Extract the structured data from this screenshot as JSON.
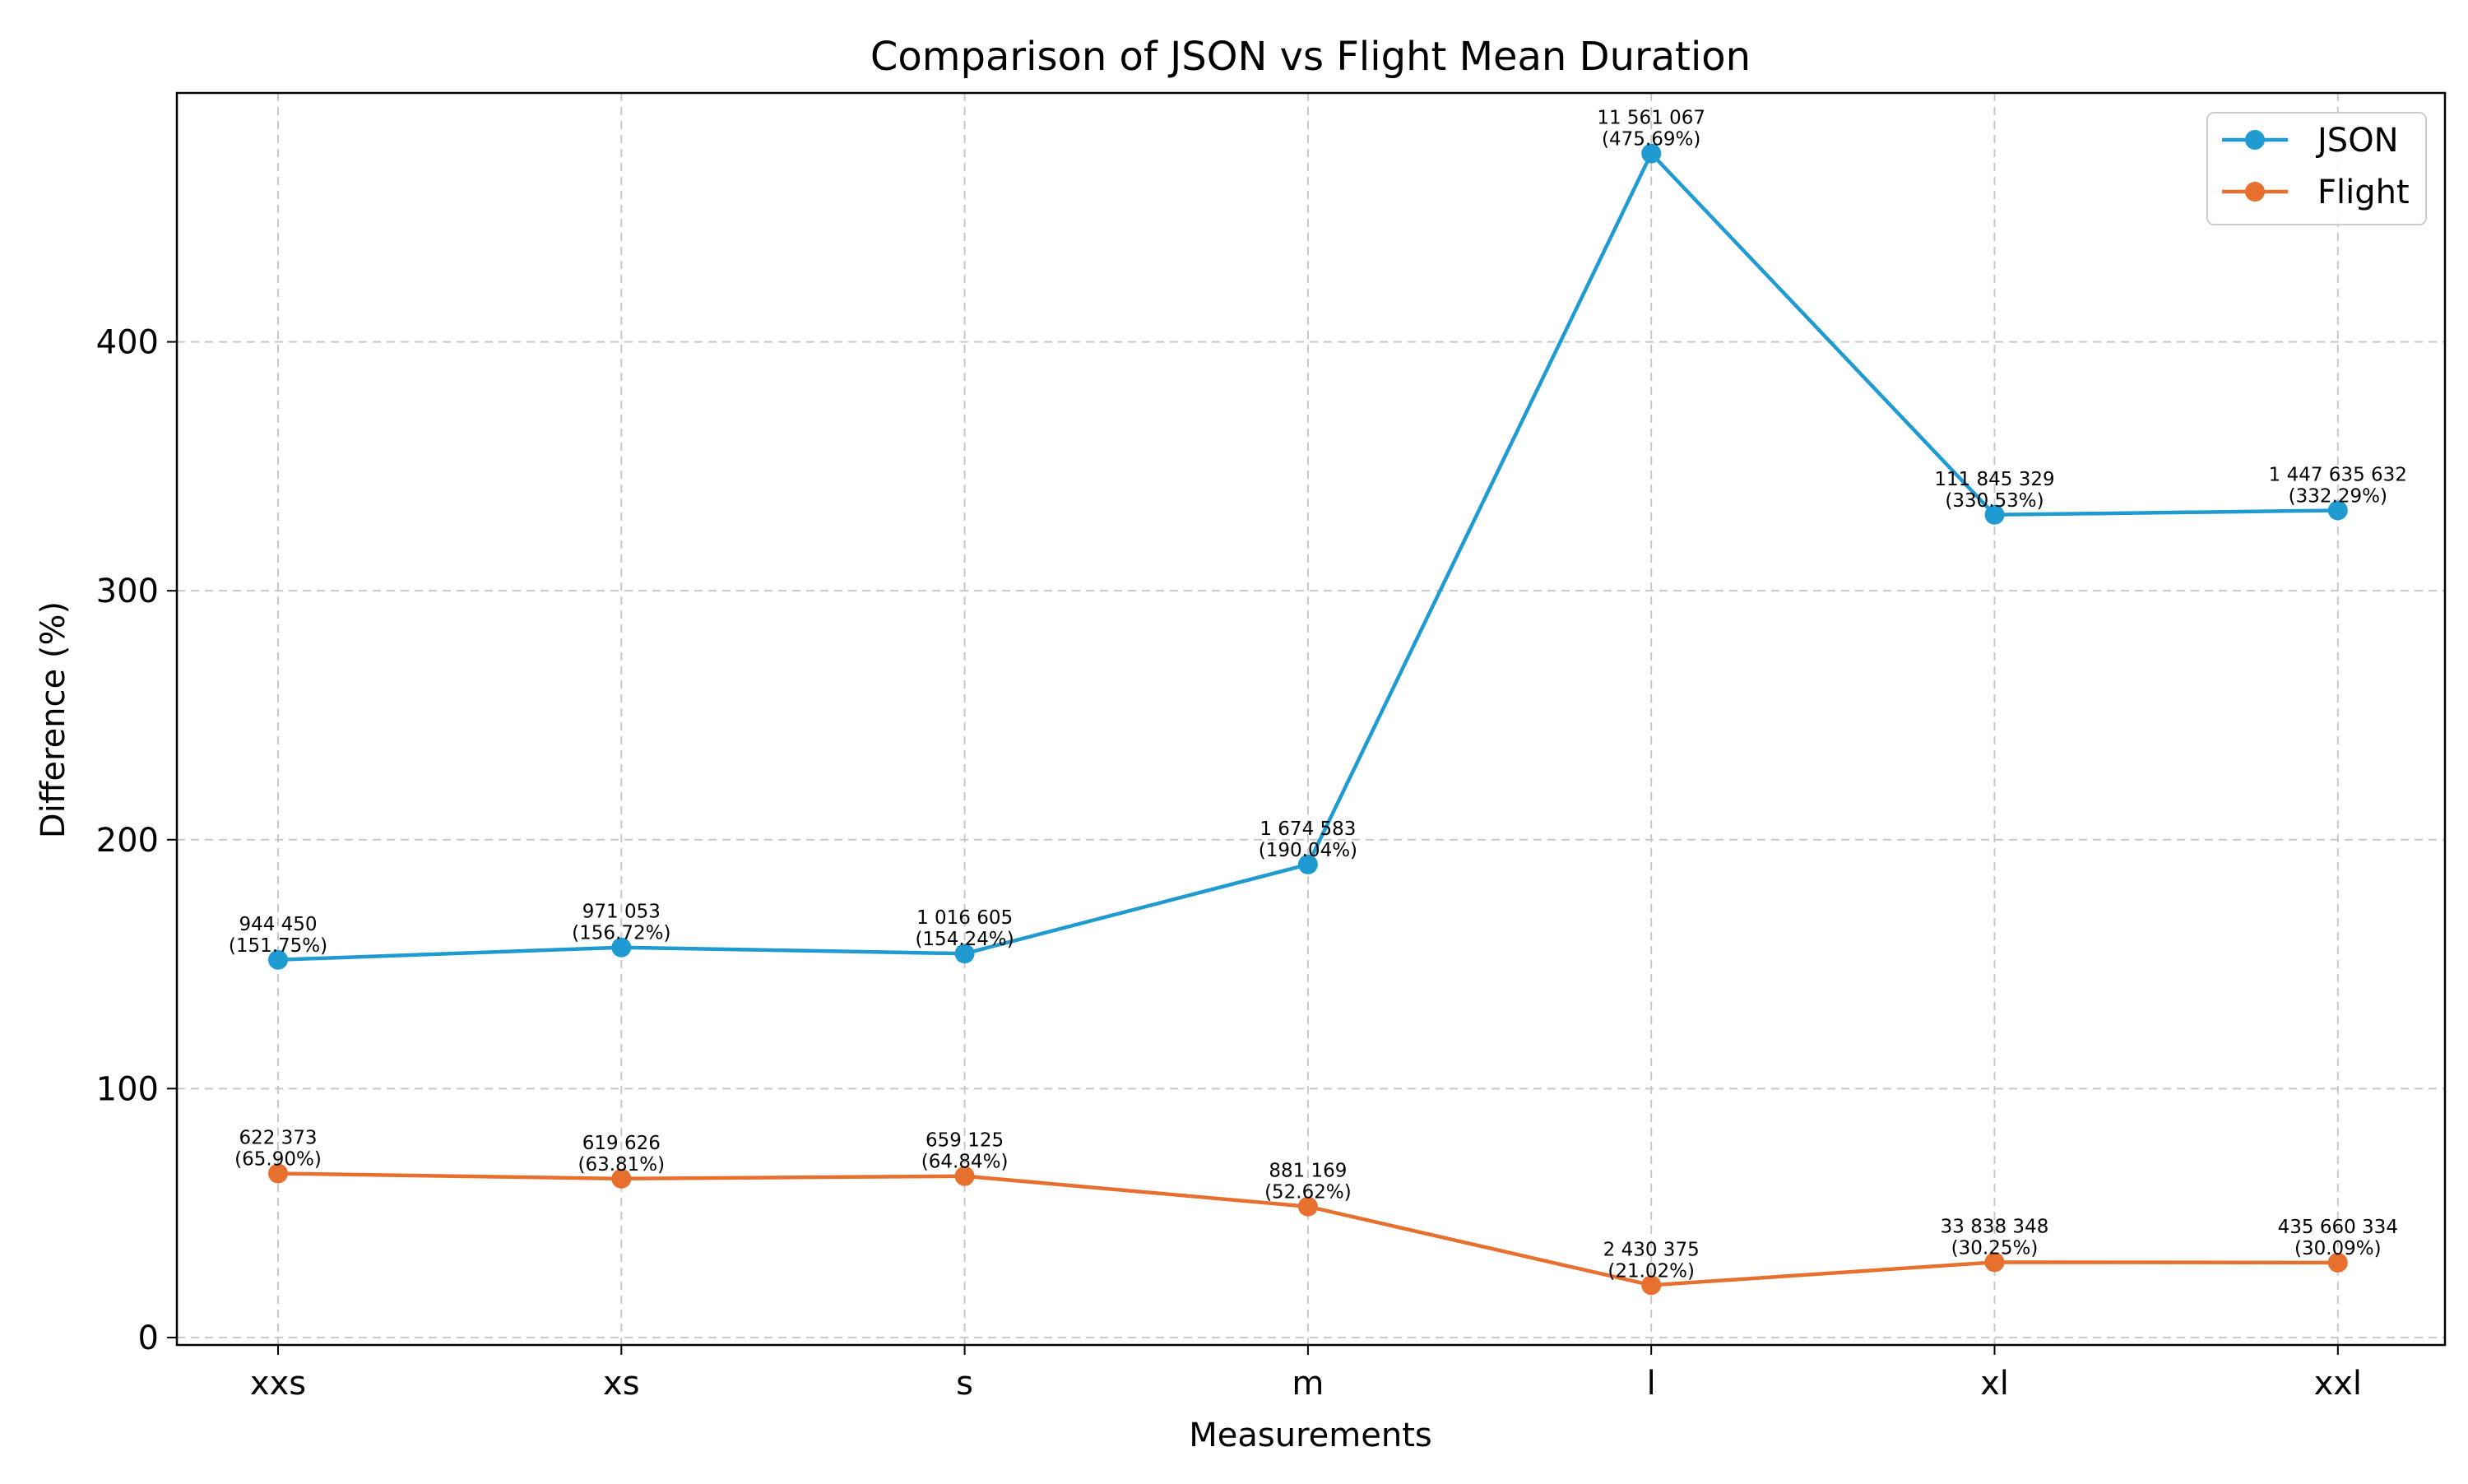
{
  "chart_data": {
    "type": "line",
    "title": "Comparison of JSON vs Flight Mean Duration",
    "xlabel": "Measurements",
    "ylabel": "Difference (%)",
    "categories": [
      "xxs",
      "xs",
      "s",
      "m",
      "l",
      "xl",
      "xxl"
    ],
    "yticks": [
      0,
      100,
      200,
      300,
      400
    ],
    "ylim": [
      -3,
      500
    ],
    "grid": true,
    "legend_position": "top-right",
    "series": [
      {
        "name": "JSON",
        "color": "#1f9bd1",
        "values": [
          151.75,
          156.72,
          154.24,
          190.04,
          475.69,
          330.53,
          332.29
        ],
        "labels": [
          [
            "944 450",
            "(151.75%)"
          ],
          [
            "971 053",
            "(156.72%)"
          ],
          [
            "1 016 605",
            "(154.24%)"
          ],
          [
            "1 674 583",
            "(190.04%)"
          ],
          [
            "11 561 067",
            "(475.69%)"
          ],
          [
            "111 845 329",
            "(330.53%)"
          ],
          [
            "1 447 635 632",
            "(332.29%)"
          ]
        ]
      },
      {
        "name": "Flight",
        "color": "#e8702f",
        "values": [
          65.9,
          63.81,
          64.84,
          52.62,
          21.02,
          30.25,
          30.09
        ],
        "labels": [
          [
            "622 373",
            "(65.90%)"
          ],
          [
            "619 626",
            "(63.81%)"
          ],
          [
            "659 125",
            "(64.84%)"
          ],
          [
            "881 169",
            "(52.62%)"
          ],
          [
            "2 430 375",
            "(21.02%)"
          ],
          [
            "33 838 348",
            "(30.25%)"
          ],
          [
            "435 660 334",
            "(30.09%)"
          ]
        ]
      }
    ]
  }
}
